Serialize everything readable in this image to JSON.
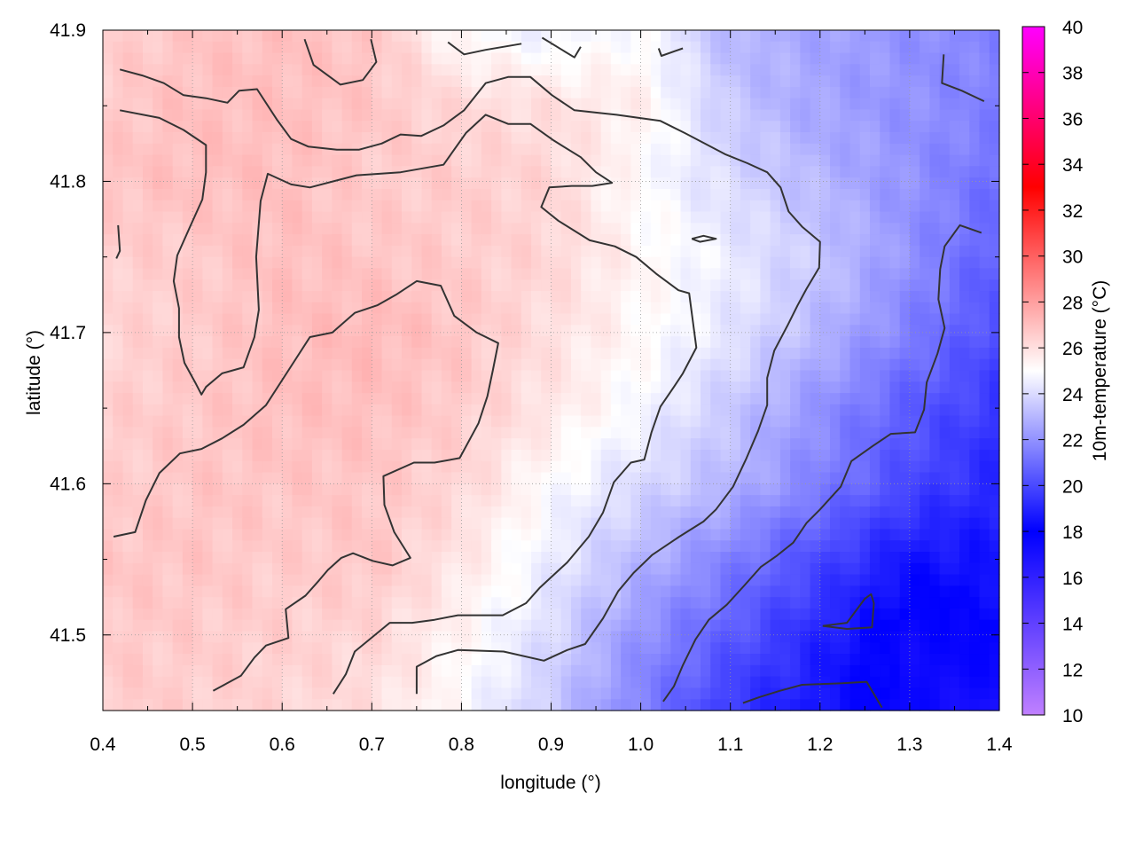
{
  "chart_data": {
    "type": "heatmap",
    "title": "",
    "xlabel": "longitude (°)",
    "ylabel": "latitude (°)",
    "colorbar_label": "10m-temperature (°C)",
    "xlim": [
      0.4,
      1.4
    ],
    "ylim": [
      41.45,
      41.9
    ],
    "x_ticks": [
      "0.4",
      "0.5",
      "0.6",
      "0.7",
      "0.8",
      "0.9",
      "1.0",
      "1.1",
      "1.2",
      "1.3",
      "1.4"
    ],
    "y_ticks": [
      "41.5",
      "41.6",
      "41.7",
      "41.8",
      "41.9"
    ],
    "colorbar_range": [
      10,
      40
    ],
    "colorbar_ticks": [
      "10",
      "12",
      "14",
      "16",
      "18",
      "20",
      "22",
      "24",
      "26",
      "28",
      "30",
      "32",
      "34",
      "36",
      "38",
      "40"
    ],
    "colormap": [
      {
        "value": 10,
        "color": "#c080ff"
      },
      {
        "value": 18,
        "color": "#0000ff"
      },
      {
        "value": 25,
        "color": "#ffffff"
      },
      {
        "value": 33,
        "color": "#ff0000"
      },
      {
        "value": 40,
        "color": "#ff00ff"
      }
    ],
    "grid": true,
    "grid_lon": [
      0.4,
      0.5,
      0.6,
      0.7,
      0.8,
      0.9,
      1.0,
      1.1,
      1.2,
      1.3,
      1.4
    ],
    "grid_lat": [
      41.9,
      41.85,
      41.8,
      41.75,
      41.7,
      41.65,
      41.6,
      41.55,
      41.5,
      41.45
    ],
    "temperature": [
      [
        26.5,
        26.8,
        27.0,
        26.8,
        25.0,
        24.5,
        25.0,
        23.0,
        22.5,
        22.0,
        21.5
      ],
      [
        26.6,
        27.0,
        27.0,
        26.8,
        26.2,
        26.0,
        25.5,
        23.5,
        22.5,
        22.0,
        21.5
      ],
      [
        26.8,
        27.0,
        27.0,
        26.6,
        26.6,
        26.3,
        25.0,
        24.0,
        23.0,
        22.0,
        21.0
      ],
      [
        26.5,
        26.6,
        27.0,
        26.8,
        26.6,
        26.3,
        25.3,
        24.5,
        23.5,
        22.0,
        20.5
      ],
      [
        26.3,
        26.6,
        27.0,
        27.2,
        26.8,
        26.0,
        25.2,
        24.3,
        23.0,
        21.5,
        20.0
      ],
      [
        26.5,
        26.7,
        27.0,
        27.0,
        26.6,
        25.8,
        24.8,
        23.5,
        22.0,
        20.5,
        19.5
      ],
      [
        26.5,
        26.8,
        26.8,
        26.8,
        26.3,
        25.0,
        24.0,
        23.0,
        21.5,
        20.0,
        19.0
      ],
      [
        26.8,
        26.8,
        26.6,
        26.8,
        25.8,
        24.5,
        23.0,
        21.5,
        20.0,
        18.5,
        18.5
      ],
      [
        26.7,
        26.6,
        26.5,
        26.3,
        25.3,
        24.0,
        22.0,
        20.5,
        19.0,
        17.5,
        18.0
      ],
      [
        26.6,
        26.5,
        26.3,
        26.0,
        25.0,
        23.5,
        21.5,
        19.5,
        18.5,
        17.5,
        17.0
      ]
    ],
    "contour_color": "#333333",
    "contours": [
      {
        "lon": [
          0.419,
          0.463,
          0.49,
          0.515,
          0.515,
          0.511,
          0.498,
          0.483,
          0.479,
          0.485,
          0.485,
          0.491,
          0.503,
          0.51,
          0.515,
          0.533,
          0.557,
          0.569,
          0.574,
          0.571,
          0.576,
          0.584,
          0.61,
          0.631,
          0.683,
          0.732,
          0.78,
          0.805,
          0.827,
          0.852,
          0.877,
          0.903,
          0.933,
          0.95,
          0.968,
          0.946,
          0.923,
          0.898,
          0.889,
          0.908,
          0.943,
          0.971,
          0.995,
          1.017,
          1.042,
          1.054,
          1.062,
          1.047,
          1.037,
          1.022,
          1.012,
          1.004,
          0.989,
          0.97,
          0.958,
          0.942,
          0.918,
          0.887,
          0.872,
          0.846,
          0.796,
          0.77,
          0.745,
          0.72,
          0.681,
          0.671,
          0.657
        ],
        "lat": [
          41.847,
          41.842,
          41.834,
          41.824,
          41.806,
          41.788,
          41.771,
          41.751,
          41.734,
          41.716,
          41.697,
          41.68,
          41.667,
          41.659,
          41.664,
          41.673,
          41.677,
          41.697,
          41.715,
          41.75,
          41.787,
          41.805,
          41.798,
          41.796,
          41.804,
          41.806,
          41.811,
          41.832,
          41.844,
          41.838,
          41.838,
          41.827,
          41.816,
          41.806,
          41.799,
          41.797,
          41.797,
          41.796,
          41.783,
          41.774,
          41.761,
          41.757,
          41.75,
          41.739,
          41.728,
          41.726,
          41.69,
          41.673,
          41.664,
          41.651,
          41.634,
          41.616,
          41.614,
          41.601,
          41.581,
          41.565,
          41.548,
          41.531,
          41.521,
          41.513,
          41.513,
          41.51,
          41.508,
          41.508,
          41.489,
          41.474,
          41.461
        ]
      },
      {
        "lon": [
          0.419,
          0.444,
          0.468,
          0.49,
          0.515,
          0.539,
          0.552,
          0.572,
          0.594,
          0.61,
          0.629,
          0.661,
          0.686,
          0.711,
          0.732,
          0.755,
          0.78,
          0.803,
          0.827,
          0.852,
          0.877,
          0.901,
          0.926,
          0.973,
          1.022,
          1.049,
          1.094,
          1.119,
          1.141,
          1.156,
          1.165,
          1.18,
          1.2,
          1.199,
          1.185,
          1.175,
          1.164,
          1.149,
          1.141,
          1.141,
          1.131,
          1.118,
          1.103,
          1.084,
          1.07,
          1.043,
          1.013,
          0.992,
          0.975,
          0.958,
          0.938,
          0.918,
          0.892,
          0.847,
          0.796,
          0.772,
          0.75,
          0.75
        ],
        "lat": [
          41.874,
          41.87,
          41.865,
          41.857,
          41.855,
          41.852,
          41.86,
          41.861,
          41.841,
          41.828,
          41.823,
          41.821,
          41.821,
          41.825,
          41.831,
          41.83,
          41.837,
          41.847,
          41.865,
          41.869,
          41.869,
          41.857,
          41.847,
          41.844,
          41.84,
          41.832,
          41.818,
          41.812,
          41.806,
          41.796,
          41.78,
          41.77,
          41.76,
          41.743,
          41.729,
          41.718,
          41.705,
          41.688,
          41.67,
          41.652,
          41.635,
          41.617,
          41.598,
          41.583,
          41.575,
          41.565,
          41.553,
          41.541,
          41.529,
          41.511,
          41.494,
          41.49,
          41.483,
          41.489,
          41.49,
          41.486,
          41.479,
          41.461
        ]
      },
      {
        "lon": [
          0.412,
          0.436,
          0.448,
          0.463,
          0.486,
          0.51,
          0.533,
          0.557,
          0.582,
          0.607,
          0.631,
          0.656,
          0.681,
          0.706,
          0.727,
          0.75,
          0.777,
          0.792,
          0.817,
          0.841,
          0.835,
          0.829,
          0.819,
          0.798,
          0.77,
          0.747,
          0.713,
          0.714,
          0.725,
          0.743,
          0.723,
          0.701,
          0.679,
          0.666,
          0.651,
          0.641,
          0.626,
          0.604,
          0.607,
          0.582,
          0.569,
          0.554,
          0.523
        ],
        "lat": [
          41.565,
          41.568,
          41.589,
          41.607,
          41.62,
          41.623,
          41.63,
          41.639,
          41.652,
          41.675,
          41.697,
          41.7,
          41.713,
          41.718,
          41.725,
          41.734,
          41.731,
          41.711,
          41.7,
          41.693,
          41.675,
          41.658,
          41.64,
          41.617,
          41.614,
          41.614,
          41.605,
          41.586,
          41.568,
          41.551,
          41.546,
          41.549,
          41.554,
          41.551,
          41.543,
          41.536,
          41.526,
          41.517,
          41.498,
          41.493,
          41.485,
          41.473,
          41.463
        ]
      },
      {
        "lon": [
          1.38,
          1.356,
          1.339,
          1.334,
          1.332,
          1.339,
          1.331,
          1.319,
          1.316,
          1.306,
          1.279,
          1.259,
          1.235,
          1.223,
          1.2,
          1.185,
          1.17,
          1.151,
          1.134,
          1.116,
          1.096,
          1.076,
          1.061,
          1.047,
          1.037,
          1.025
        ],
        "lat": [
          41.766,
          41.771,
          41.757,
          41.742,
          41.722,
          41.703,
          41.686,
          41.667,
          41.649,
          41.634,
          41.633,
          41.625,
          41.615,
          41.598,
          41.583,
          41.574,
          41.561,
          41.552,
          41.545,
          41.533,
          41.52,
          41.51,
          41.497,
          41.48,
          41.466,
          41.456
        ]
      },
      {
        "lon": [
          0.625,
          0.635,
          0.665,
          0.69,
          0.705,
          0.699
        ],
        "lat": [
          41.894,
          41.877,
          41.864,
          41.867,
          41.879,
          41.894
        ]
      },
      {
        "lon": [
          0.785,
          0.803,
          0.827,
          0.867
        ],
        "lat": [
          41.892,
          41.884,
          41.887,
          41.891
        ]
      },
      {
        "lon": [
          0.89,
          0.926,
          0.933
        ],
        "lat": [
          41.895,
          41.882,
          41.889
        ]
      },
      {
        "lon": [
          1.02,
          1.023,
          1.047
        ],
        "lat": [
          41.888,
          41.883,
          41.888
        ]
      },
      {
        "lon": [
          1.338,
          1.336,
          1.358,
          1.383
        ],
        "lat": [
          41.884,
          41.865,
          41.86,
          41.853
        ]
      },
      {
        "lon": [
          0.417,
          0.419,
          0.415
        ],
        "lat": [
          41.771,
          41.754,
          41.749
        ]
      },
      {
        "lon": [
          1.057,
          1.07,
          1.084,
          1.066,
          1.057
        ],
        "lat": [
          41.762,
          41.764,
          41.762,
          41.76,
          41.762
        ]
      },
      {
        "lon": [
          1.203,
          1.23,
          1.25,
          1.257,
          1.26,
          1.258,
          1.23,
          1.203
        ],
        "lat": [
          41.506,
          41.508,
          41.524,
          41.527,
          41.521,
          41.505,
          41.504,
          41.506
        ]
      },
      {
        "lon": [
          1.114,
          1.133,
          1.155,
          1.18,
          1.225,
          1.252,
          1.269
        ],
        "lat": [
          41.455,
          41.459,
          41.463,
          41.467,
          41.468,
          41.469,
          41.452
        ]
      }
    ]
  }
}
